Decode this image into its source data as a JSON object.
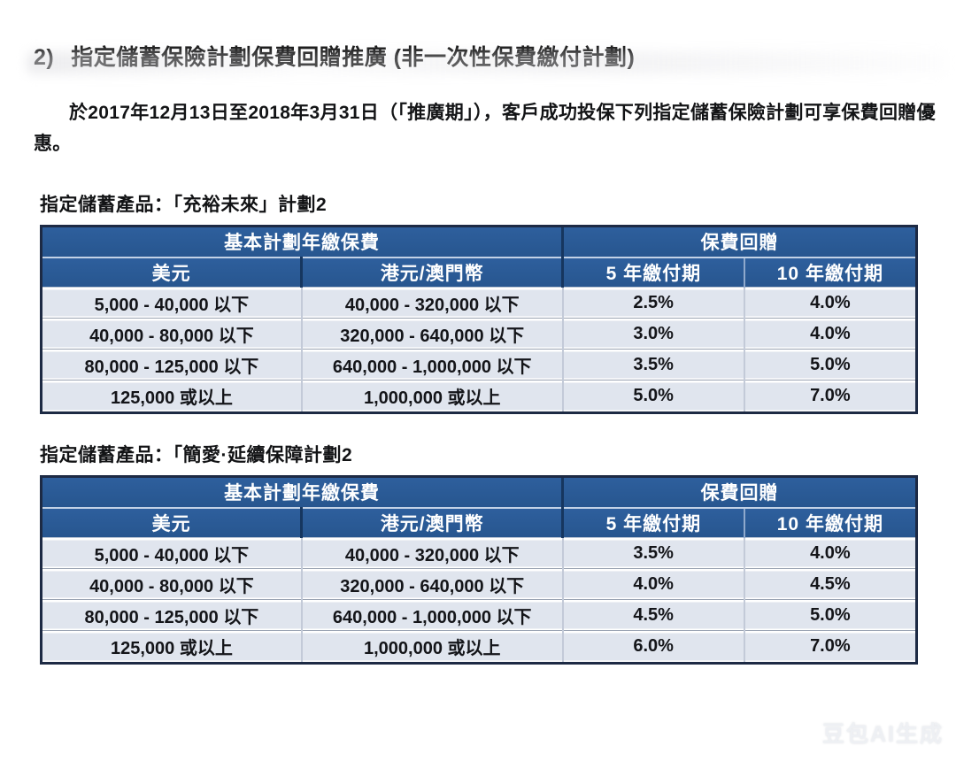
{
  "page": {
    "heading_number": "2)",
    "heading_text": "指定儲蓄保險計劃保費回贈推廣 (非一次性保費繳付計劃)",
    "paragraph": "於2017年12月13日至2018年3月31日（「推廣期」），客戶成功投保下列指定儲蓄保險計劃可享保費回贈優惠。",
    "watermark": "豆包AI生成"
  },
  "tables": [
    {
      "title": "指定儲蓄產品：「充裕未來」計劃2",
      "group_headers": [
        "基本計劃年繳保費",
        "保費回贈"
      ],
      "col_headers": [
        "美元",
        "港元/澳門幣",
        "5 年繳付期",
        "10 年繳付期"
      ],
      "rows": [
        [
          "5,000 - 40,000 以下",
          "40,000 - 320,000 以下",
          "2.5%",
          "4.0%"
        ],
        [
          "40,000 - 80,000 以下",
          "320,000 - 640,000 以下",
          "3.0%",
          "4.0%"
        ],
        [
          "80,000 - 125,000 以下",
          "640,000 - 1,000,000 以下",
          "3.5%",
          "5.0%"
        ],
        [
          "125,000 或以上",
          "1,000,000 或以上",
          "5.0%",
          "7.0%"
        ]
      ]
    },
    {
      "title": "指定儲蓄產品：「簡愛·延續保障計劃2",
      "group_headers": [
        "基本計劃年繳保費",
        "保費回贈"
      ],
      "col_headers": [
        "美元",
        "港元/澳門幣",
        "5 年繳付期",
        "10 年繳付期"
      ],
      "rows": [
        [
          "5,000 - 40,000 以下",
          "40,000 - 320,000 以下",
          "3.5%",
          "4.0%"
        ],
        [
          "40,000 - 80,000 以下",
          "320,000 - 640,000 以下",
          "4.0%",
          "4.5%"
        ],
        [
          "80,000 - 125,000 以下",
          "640,000 - 1,000,000 以下",
          "4.5%",
          "5.0%"
        ],
        [
          "125,000 或以上",
          "1,000,000 或以上",
          "6.0%",
          "7.0%"
        ]
      ]
    }
  ],
  "colors": {
    "header_blue": "#2e5f9d",
    "header_blue_dark": "#27568f",
    "row_bg": "#e0e5ee",
    "border_dark": "#1d2a44",
    "divider_dark": "#16365f",
    "divider_light": "#8fa9cc"
  }
}
